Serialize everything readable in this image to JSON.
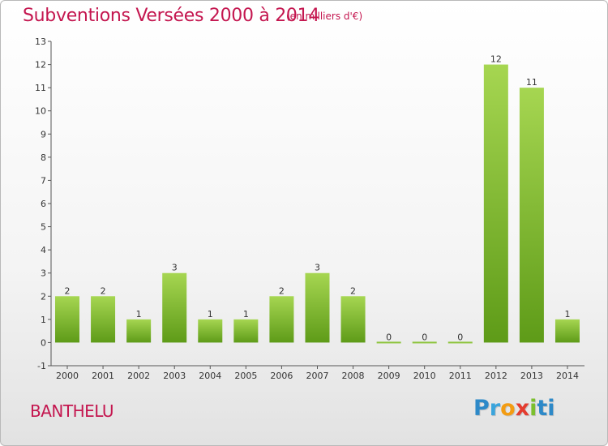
{
  "brand": {
    "name": "Proxiti",
    "letters": [
      "P",
      "r",
      "o",
      "x",
      "i",
      "t",
      "i"
    ]
  },
  "commune": "BANTHELU",
  "colors": {
    "title": "#c4164f",
    "bar_light": "#9fd04c",
    "bar_dark": "#5f9d1a",
    "axis": "#333333"
  },
  "chart_data": {
    "type": "bar",
    "title": "Subventions Versées 2000 à 2014",
    "subtitle": "(en milliers d'€)",
    "xlabel": "",
    "ylabel": "",
    "categories": [
      "2000",
      "2001",
      "2002",
      "2003",
      "2004",
      "2005",
      "2006",
      "2007",
      "2008",
      "2009",
      "2010",
      "2011",
      "2012",
      "2013",
      "2014"
    ],
    "values": [
      2,
      2,
      1,
      3,
      1,
      1,
      2,
      3,
      2,
      0,
      0,
      0,
      12,
      11,
      1
    ],
    "yticks": [
      -1,
      0,
      1,
      2,
      3,
      4,
      5,
      6,
      7,
      8,
      9,
      10,
      11,
      12,
      13
    ],
    "ylim": [
      -1,
      13
    ],
    "grid": false,
    "legend": "none"
  }
}
